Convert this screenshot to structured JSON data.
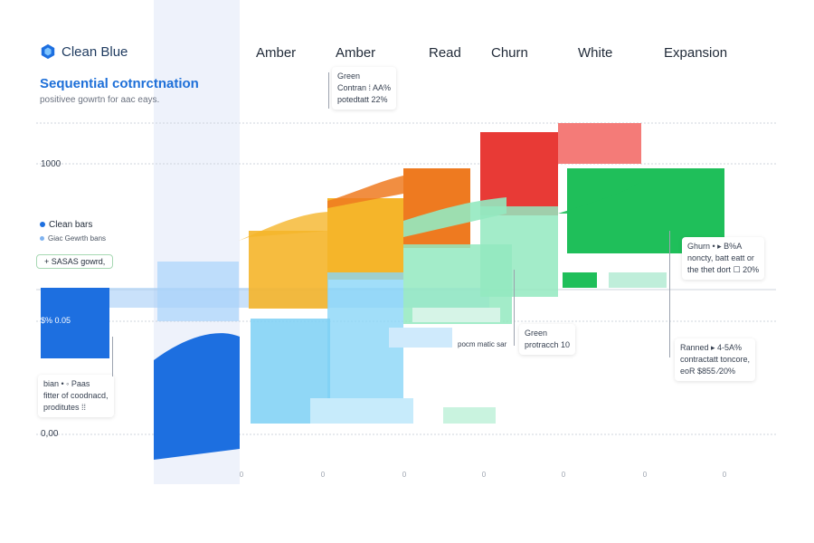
{
  "brand": {
    "name": "Clean Blue",
    "icon": "hexagon-logo-icon"
  },
  "title": "Sequential cotnrctnation",
  "subtitle": "positivee gowrtn for aac eays.",
  "column_headers": [
    "Amber",
    "Amber",
    "Read",
    "Churn",
    "White",
    "Expansion"
  ],
  "legend": {
    "primary": "Clean bars",
    "secondary": "Giac Gewrth bans",
    "pill": "+ SASAS gowrd,"
  },
  "value_label": "$% 0.05",
  "annotations": {
    "top": {
      "title": "Green",
      "line1": "Contran ⁞ AA%",
      "line2": "potedtatt 22%"
    },
    "mid": {
      "title": "Green",
      "line1": "protracch 10",
      "side": "pocm matic sar"
    },
    "right_top": {
      "line1": "Ghurn • ▸ B%A",
      "line2": "noncty, batt eatt or",
      "line3": "the thet dort ☐ 20%"
    },
    "right_bottom": {
      "line1": "Ranned ▸ 4-5A%",
      "line2": "contractatt toncore,",
      "line3": "eoR $855 ⁄20%"
    },
    "left_bottom": {
      "line1": "bian • ◦ Paas",
      "line2": "fitter of coodnacd,",
      "line3": "proditutes ⁞⁞"
    }
  },
  "colors": {
    "blue": "#1d6fe0",
    "sky": "#7dd0f5",
    "amber": "#f5b52a",
    "orange": "#ee7a20",
    "red": "#e83a36",
    "mint": "#93e9c0",
    "green": "#1fbf5a",
    "band": "#eef2fb",
    "grid": "#cfd4dc"
  },
  "chart_data": {
    "type": "bar",
    "title": "Sequential cotnrctnation",
    "subtitle": "positivee gowrtn for aac eays.",
    "y_ticks": [
      "1000",
      "0,00"
    ],
    "x_ticks": [
      "0",
      "0",
      "0",
      "0",
      "0",
      "0",
      "0"
    ],
    "categories": [
      "Clean Blue",
      "Amber",
      "Amber",
      "Read",
      "Churn",
      "White",
      "Expansion"
    ],
    "series": [
      {
        "name": "Clean bars",
        "color": "#1d6fe0"
      }
    ],
    "grid": true,
    "legend": "left"
  }
}
